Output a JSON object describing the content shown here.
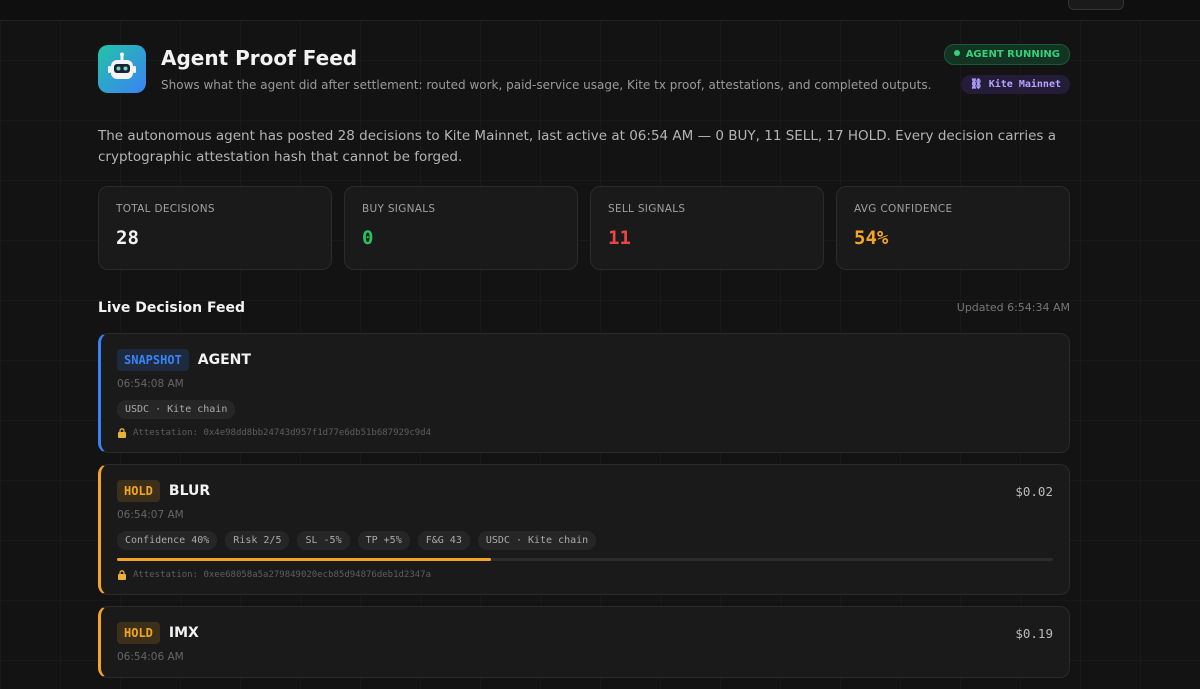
{
  "header": {
    "title": "Agent Proof Feed",
    "subtitle": "Shows what the agent did after settlement: routed work, paid-service usage, Kite tx proof, attestations, and completed outputs.",
    "status": "AGENT RUNNING",
    "network": "⛓ Kite Mainnet"
  },
  "summary": "The autonomous agent has posted 28 decisions to Kite Mainnet, last active at 06:54 AM — 0 BUY, 11 SELL, 17 HOLD. Every decision carries a cryptographic attestation hash that cannot be forged.",
  "stats": [
    {
      "label": "TOTAL DECISIONS",
      "value": "28",
      "color": "#f2f2f2"
    },
    {
      "label": "BUY SIGNALS",
      "value": "0",
      "color": "#22c55e"
    },
    {
      "label": "SELL SIGNALS",
      "value": "11",
      "color": "#ef4444"
    },
    {
      "label": "AVG CONFIDENCE",
      "value": "54%",
      "color": "#f5a524"
    }
  ],
  "feed_title": "Live Decision Feed",
  "updated": "Updated 6:54:34 AM",
  "feed": [
    {
      "action": "SNAPSHOT",
      "asset": "AGENT",
      "color": "#3b82f6",
      "time": "06:54:08 AM",
      "chips": [
        "USDC · Kite chain"
      ],
      "attestation": "Attestation: 0x4e98dd8bb24743d957f1d77e6db51b687929c9d4"
    },
    {
      "action": "HOLD",
      "asset": "BLUR",
      "color": "#f5a524",
      "price": "$0.02",
      "time": "06:54:07 AM",
      "confidence": {
        "value": 40,
        "label": "Confidence 40%"
      },
      "chips": [
        "Risk 2/5",
        "SL -5%",
        "TP +5%",
        "F&G 43",
        "USDC · Kite chain"
      ],
      "attestation": "Attestation: 0xee68058a5a279849020ecb85d94876deb1d2347a"
    },
    {
      "action": "HOLD",
      "asset": "IMX",
      "color": "#f5a524",
      "price": "$0.19",
      "time": "06:54:06 AM"
    }
  ]
}
